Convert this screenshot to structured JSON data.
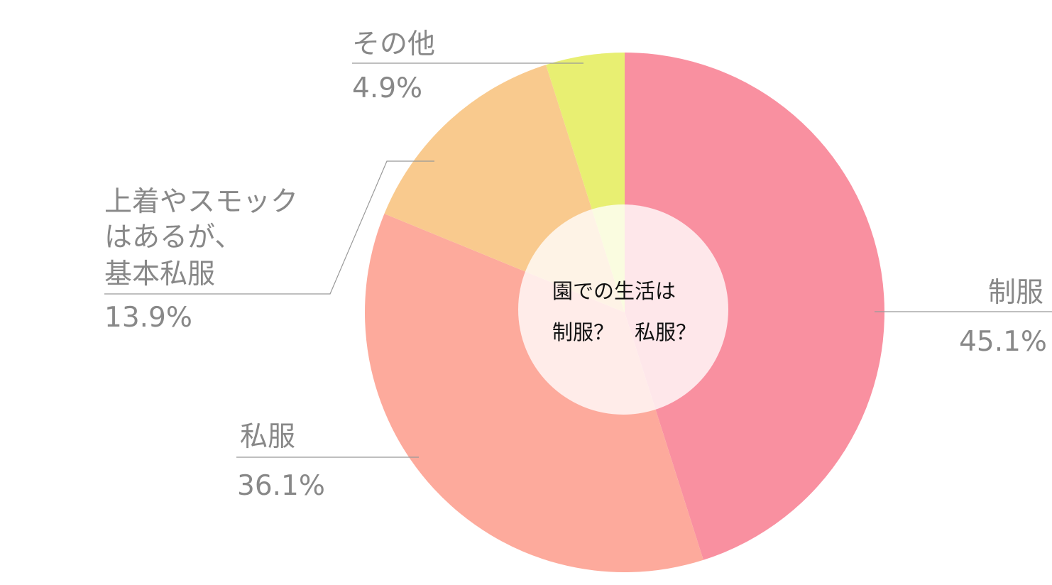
{
  "chart_data": {
    "type": "pie",
    "center_text": [
      "園での生活は",
      "制服？　私服？"
    ],
    "slices": [
      {
        "label": [
          "制服"
        ],
        "value": 45.1,
        "value_label": "45.1%",
        "color": "#f990a0"
      },
      {
        "label": [
          "私服"
        ],
        "value": 36.1,
        "value_label": "36.1%",
        "color": "#fdaa9c"
      },
      {
        "label": [
          "上着やスモック",
          "はあるが、",
          "基本私服"
        ],
        "value": 13.9,
        "value_label": "13.9%",
        "color": "#f9ca8e"
      },
      {
        "label": [
          "その他"
        ],
        "value": 4.9,
        "value_label": "4.9%",
        "color": "#e8ef72"
      }
    ],
    "center_fill": "rgba(255,255,255,0.78)"
  }
}
